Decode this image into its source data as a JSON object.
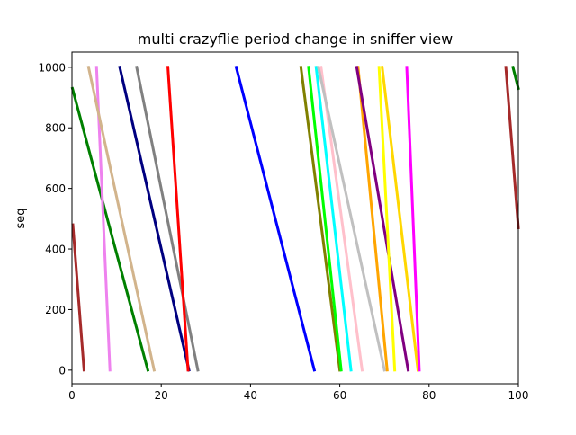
{
  "chart_data": {
    "type": "line",
    "title": "multi crazyflie period change in sniffer view",
    "xlabel": "",
    "ylabel": "seq",
    "xlim": [
      0,
      100
    ],
    "ylim": [
      -45,
      1050
    ],
    "grid": false,
    "legend": "none",
    "x_ticks": [
      0,
      20,
      40,
      60,
      80,
      100
    ],
    "y_ticks": [
      0,
      200,
      400,
      600,
      800,
      1000
    ],
    "series": [
      {
        "color": "#a52a2a",
        "segments": [
          [
            [
              0.2,
              480
            ],
            [
              2.7,
              0
            ]
          ],
          [
            [
              97.2,
              1000
            ],
            [
              100,
              470
            ]
          ]
        ]
      },
      {
        "color": "#008000",
        "segments": [
          [
            [
              0.1,
              930
            ],
            [
              17,
              0
            ]
          ],
          [
            [
              98.8,
              1000
            ],
            [
              100,
              930
            ]
          ]
        ]
      },
      {
        "color": "#ee82ee",
        "segments": [
          [
            [
              5.5,
              1000
            ],
            [
              8.5,
              0
            ]
          ]
        ]
      },
      {
        "color": "#d2b48c",
        "segments": [
          [
            [
              3.7,
              1000
            ],
            [
              18.4,
              0
            ]
          ]
        ]
      },
      {
        "color": "#000080",
        "segments": [
          [
            [
              10.7,
              1000
            ],
            [
              26.2,
              0
            ]
          ]
        ]
      },
      {
        "color": "#808080",
        "segments": [
          [
            [
              14.5,
              1000
            ],
            [
              28.2,
              0
            ]
          ]
        ]
      },
      {
        "color": "#ff0000",
        "segments": [
          [
            [
              21.5,
              1000
            ],
            [
              26,
              0
            ]
          ]
        ]
      },
      {
        "color": "#0000ff",
        "segments": [
          [
            [
              36.8,
              1000
            ],
            [
              54.3,
              0
            ]
          ]
        ]
      },
      {
        "color": "#808000",
        "segments": [
          [
            [
              51.3,
              1000
            ],
            [
              60,
              0
            ]
          ]
        ]
      },
      {
        "color": "#00ff00",
        "segments": [
          [
            [
              53,
              1000
            ],
            [
              60.3,
              0
            ]
          ]
        ]
      },
      {
        "color": "#00ffff",
        "segments": [
          [
            [
              54.7,
              1000
            ],
            [
              62.5,
              0
            ]
          ]
        ]
      },
      {
        "color": "#ffc0cb",
        "segments": [
          [
            [
              55.8,
              1000
            ],
            [
              65,
              0
            ]
          ]
        ]
      },
      {
        "color": "#c0c0c0",
        "segments": [
          [
            [
              55.2,
              1000
            ],
            [
              70,
              0
            ]
          ]
        ]
      },
      {
        "color": "#ffa500",
        "segments": [
          [
            [
              64.1,
              1000
            ],
            [
              70.6,
              0
            ]
          ]
        ]
      },
      {
        "color": "#800080",
        "segments": [
          [
            [
              63.8,
              1000
            ],
            [
              75.3,
              0
            ]
          ]
        ]
      },
      {
        "color": "#ffff00",
        "segments": [
          [
            [
              68.8,
              1000
            ],
            [
              72.3,
              0
            ]
          ]
        ]
      },
      {
        "color": "#ffd700",
        "segments": [
          [
            [
              69.5,
              1000
            ],
            [
              77.5,
              0
            ]
          ]
        ]
      },
      {
        "color": "#ff00ff",
        "segments": [
          [
            [
              75,
              1000
            ],
            [
              77.8,
              0
            ]
          ]
        ]
      }
    ]
  }
}
